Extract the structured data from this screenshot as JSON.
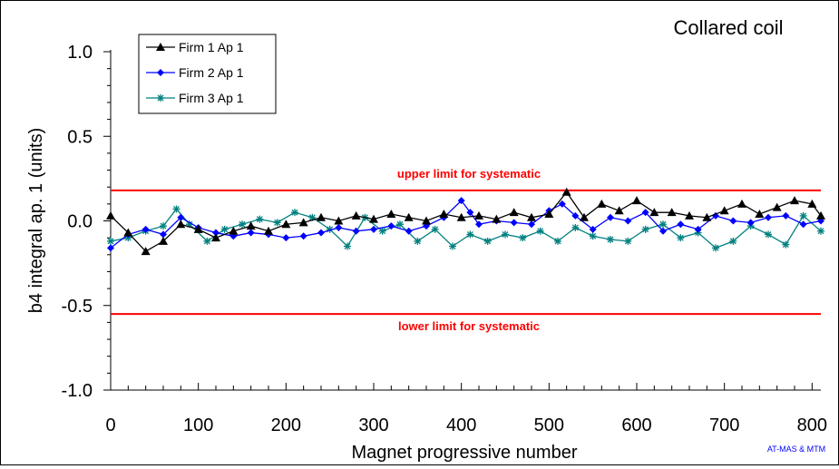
{
  "chart_data": {
    "type": "line",
    "title": "Collared coil",
    "xlabel": "Magnet progressive number",
    "ylabel": "b4 integral ap. 1 (units)",
    "xlim": [
      0,
      810
    ],
    "ylim": [
      -1.0,
      1.0
    ],
    "x_ticks": [
      0,
      100,
      200,
      300,
      400,
      500,
      600,
      700,
      800
    ],
    "x_tick_labels": [
      "0",
      "100",
      "200",
      "300",
      "400",
      "500",
      "600",
      "700",
      "800"
    ],
    "y_ticks": [
      1.0,
      0.5,
      0.0,
      -0.5,
      -1.0
    ],
    "y_tick_labels": [
      "1.0",
      "0.5",
      "0.0",
      "-0.5",
      "-1.0"
    ],
    "grid": false,
    "legend_position": "top-left",
    "credit": "AT-MAS & MTM",
    "reference_lines": [
      {
        "label": "upper limit for systematic",
        "y": 0.18,
        "color": "#ff0000"
      },
      {
        "label": "lower limit for systematic",
        "y": -0.55,
        "color": "#ff0000"
      }
    ],
    "series": [
      {
        "name": "Firm 1 Ap 1",
        "color": "#000000",
        "marker": "triangle",
        "x": [
          0,
          20,
          40,
          60,
          80,
          100,
          120,
          140,
          160,
          180,
          200,
          220,
          240,
          260,
          280,
          300,
          320,
          340,
          360,
          380,
          400,
          420,
          440,
          460,
          480,
          500,
          520,
          540,
          560,
          580,
          600,
          620,
          640,
          660,
          680,
          700,
          720,
          740,
          760,
          780,
          800,
          810
        ],
        "y": [
          0.03,
          -0.07,
          -0.18,
          -0.12,
          -0.02,
          -0.05,
          -0.1,
          -0.06,
          -0.03,
          -0.06,
          -0.02,
          -0.01,
          0.02,
          0.0,
          0.03,
          0.01,
          0.04,
          0.02,
          0.0,
          0.04,
          0.02,
          0.03,
          0.01,
          0.05,
          0.02,
          0.04,
          0.17,
          0.02,
          0.1,
          0.06,
          0.12,
          0.05,
          0.05,
          0.03,
          0.02,
          0.06,
          0.1,
          0.04,
          0.08,
          0.12,
          0.1,
          0.03
        ]
      },
      {
        "name": "Firm 2 Ap 1",
        "color": "#0000ff",
        "marker": "diamond",
        "x": [
          0,
          20,
          40,
          60,
          80,
          100,
          120,
          140,
          160,
          180,
          200,
          220,
          240,
          260,
          280,
          300,
          320,
          340,
          360,
          380,
          400,
          410,
          420,
          440,
          460,
          480,
          500,
          515,
          530,
          550,
          570,
          590,
          610,
          630,
          650,
          670,
          690,
          710,
          730,
          750,
          770,
          790,
          810
        ],
        "y": [
          -0.16,
          -0.08,
          -0.05,
          -0.08,
          0.02,
          -0.04,
          -0.07,
          -0.09,
          -0.07,
          -0.08,
          -0.1,
          -0.09,
          -0.07,
          -0.04,
          -0.06,
          -0.05,
          -0.03,
          -0.06,
          -0.03,
          0.02,
          0.12,
          0.05,
          -0.02,
          0.0,
          -0.01,
          -0.02,
          0.06,
          0.1,
          0.03,
          -0.05,
          0.02,
          0.0,
          0.05,
          -0.06,
          -0.02,
          -0.05,
          0.03,
          0.0,
          -0.01,
          0.02,
          0.03,
          -0.02,
          0.0
        ]
      },
      {
        "name": "Firm 3 Ap 1",
        "color": "#008080",
        "marker": "star",
        "x": [
          0,
          20,
          40,
          60,
          75,
          90,
          110,
          130,
          150,
          170,
          190,
          210,
          230,
          250,
          270,
          290,
          310,
          330,
          350,
          370,
          390,
          410,
          430,
          450,
          470,
          490,
          510,
          530,
          550,
          570,
          590,
          610,
          630,
          650,
          670,
          690,
          710,
          730,
          750,
          770,
          790,
          810
        ],
        "y": [
          -0.12,
          -0.1,
          -0.06,
          -0.03,
          0.07,
          -0.02,
          -0.12,
          -0.05,
          -0.02,
          0.01,
          -0.01,
          0.05,
          0.02,
          -0.05,
          -0.15,
          0.02,
          -0.06,
          -0.02,
          -0.12,
          -0.05,
          -0.15,
          -0.08,
          -0.12,
          -0.08,
          -0.1,
          -0.06,
          -0.12,
          -0.04,
          -0.09,
          -0.11,
          -0.12,
          -0.05,
          -0.02,
          -0.1,
          -0.07,
          -0.16,
          -0.12,
          -0.03,
          -0.08,
          -0.14,
          0.03,
          -0.06
        ]
      }
    ]
  }
}
